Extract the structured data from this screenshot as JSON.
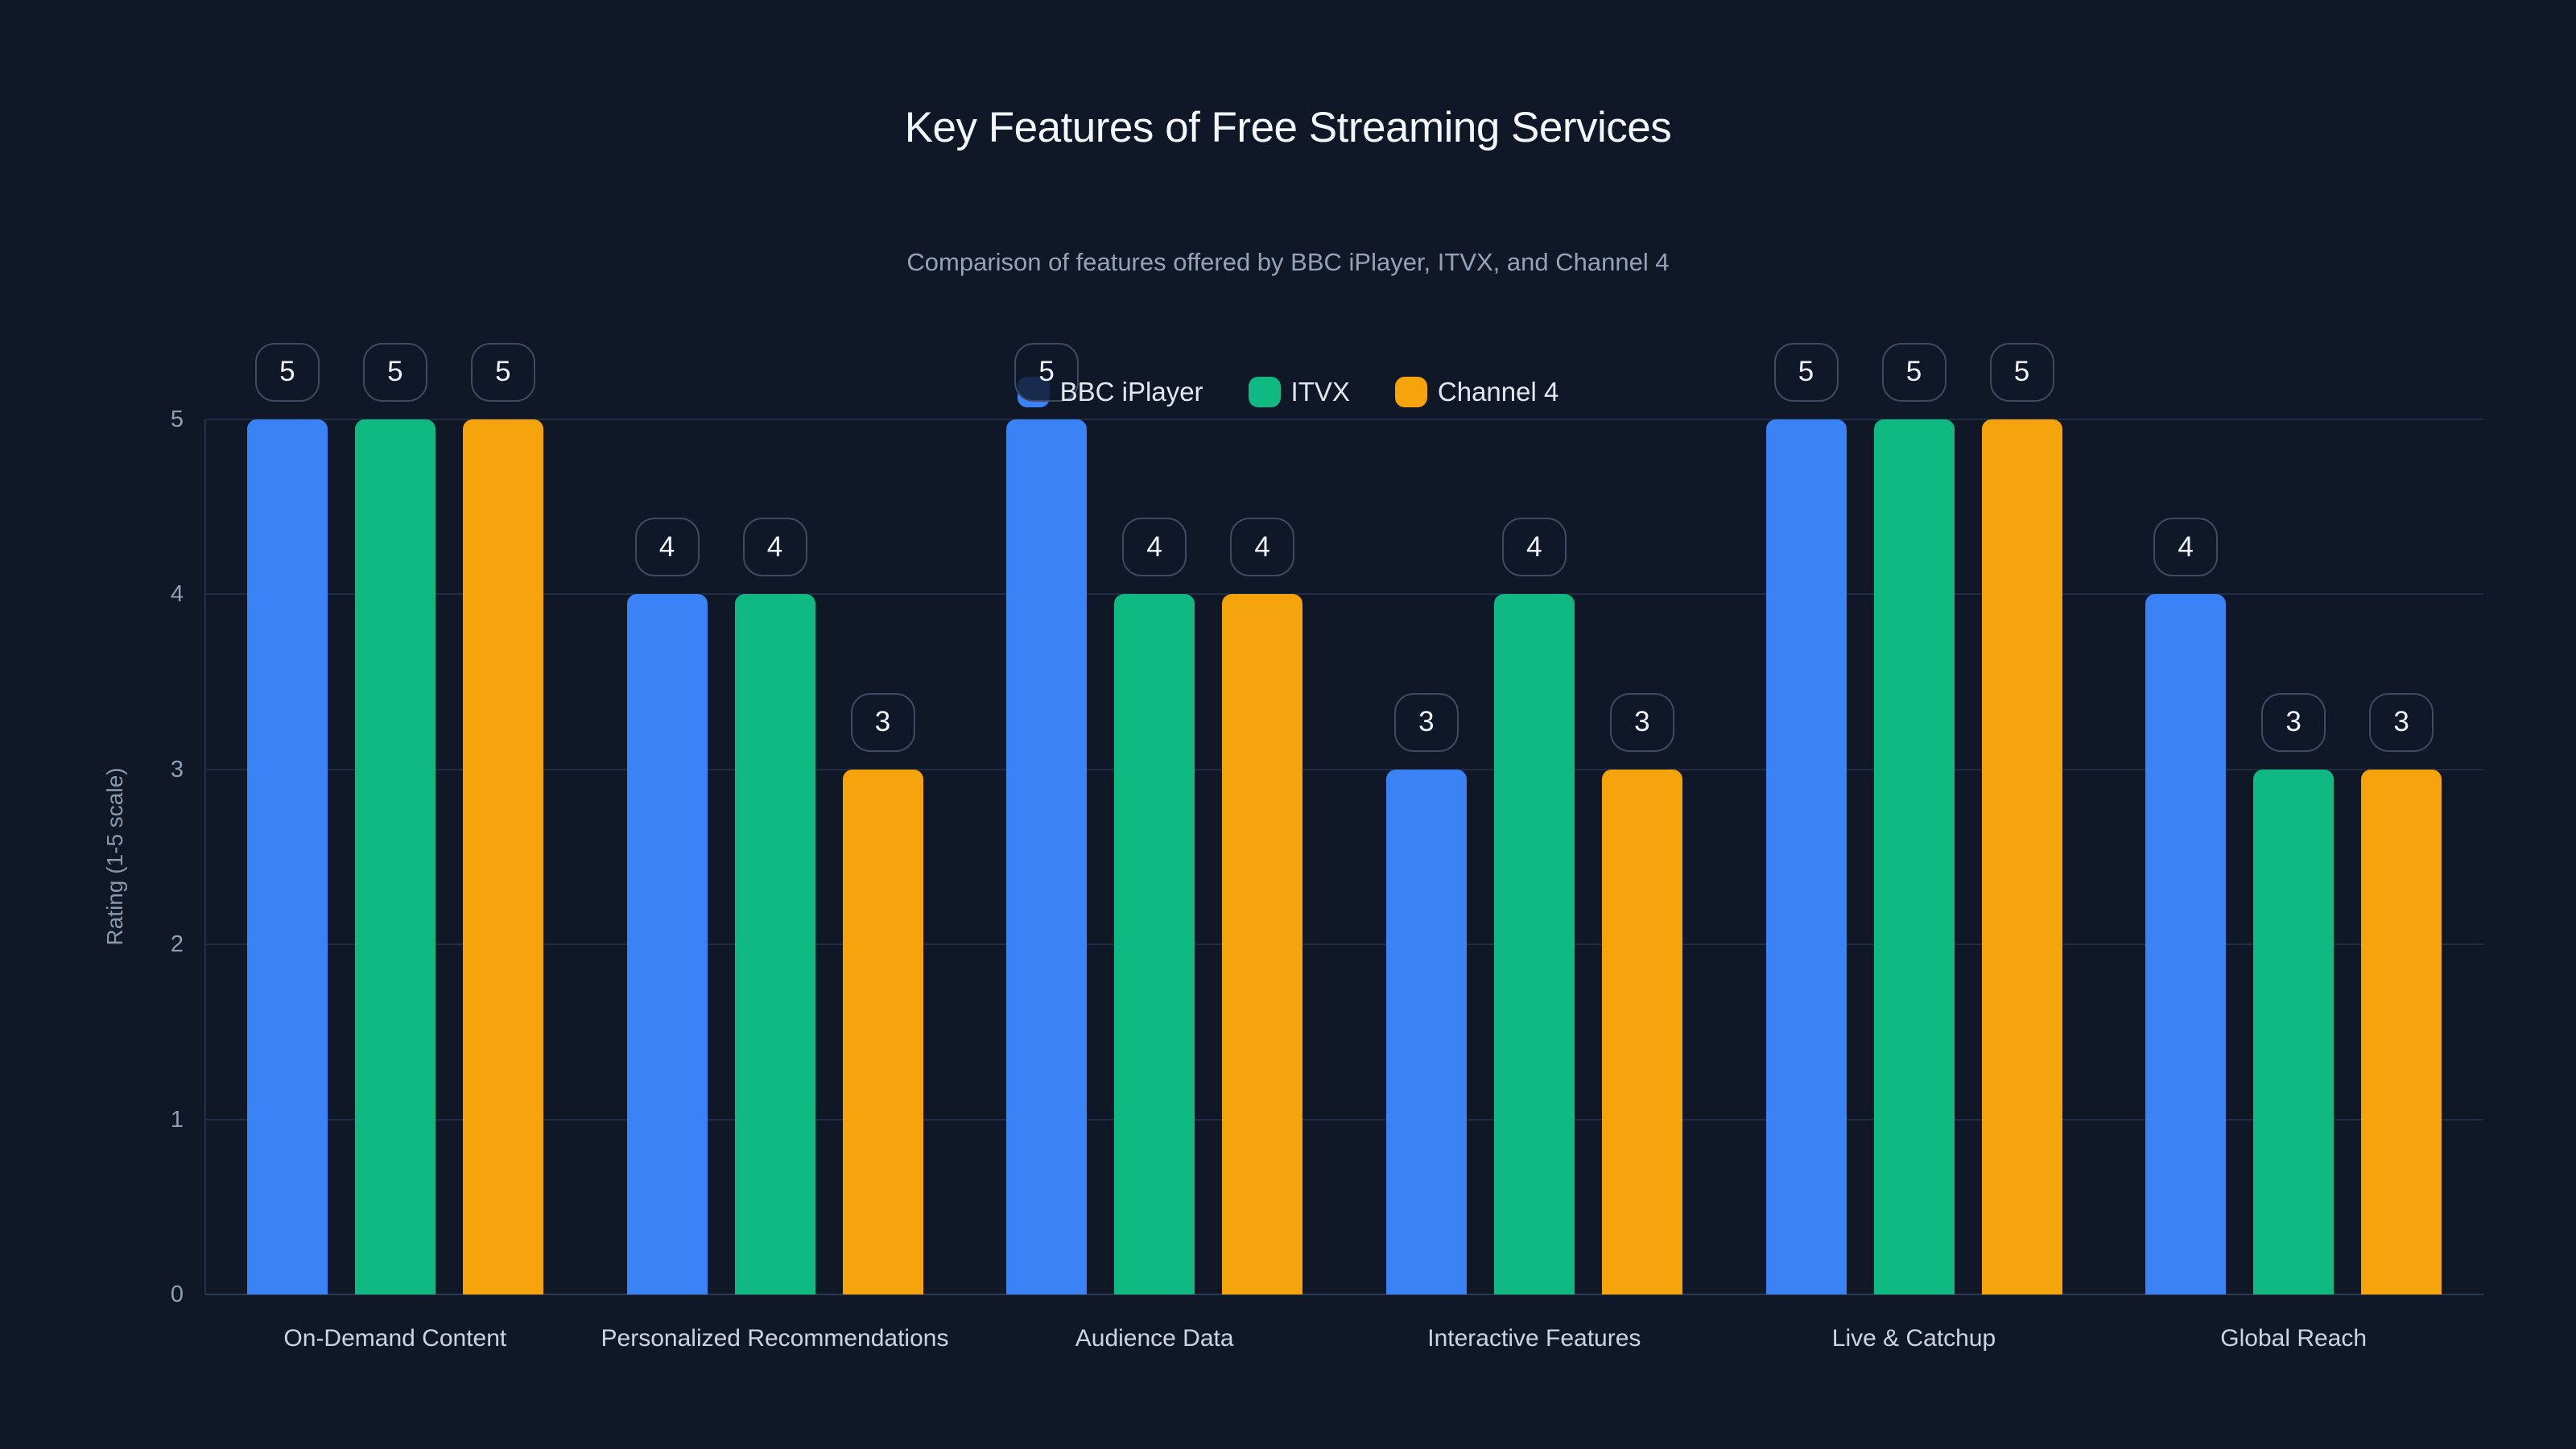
{
  "page": {
    "background": "#101828"
  },
  "chart_data": {
    "type": "bar",
    "title": "Key Features of Free Streaming Services",
    "subtitle": "Comparison of features offered by BBC iPlayer, ITVX, and Channel 4",
    "categories": [
      "On-Demand Content",
      "Personalized Recommendations",
      "Audience Data",
      "Interactive Features",
      "Live & Catchup",
      "Global Reach"
    ],
    "series": [
      {
        "name": "BBC iPlayer",
        "color": "#3b82f6",
        "values": [
          5,
          4,
          5,
          3,
          5,
          4
        ]
      },
      {
        "name": "ITVX",
        "color": "#10b981",
        "values": [
          5,
          4,
          4,
          4,
          5,
          3
        ]
      },
      {
        "name": "Channel 4",
        "color": "#f5a30b",
        "values": [
          5,
          3,
          4,
          3,
          5,
          3
        ]
      }
    ],
    "xlabel": "",
    "ylabel": "Rating (1-5 scale)",
    "ylim": [
      0,
      5
    ],
    "yticks": [
      0,
      1,
      2,
      3,
      4,
      5
    ],
    "grid": true,
    "legend_position": "top-center",
    "value_label_style": "rounded badge above each bar"
  },
  "style": {
    "title_color": "#f4f7fb",
    "subtitle_color": "#94a3b8",
    "legend_text_color": "#e2e8f0",
    "tick_label_color": "#8fa0b5",
    "category_label_color": "#cbd5e1",
    "ylabel_color": "#8b99ad",
    "grid_color": "#212d42",
    "baseline_color": "#2c3a54",
    "axis_line_color": "#243148",
    "badge_border_color": "#3e4a5f",
    "badge_bg_color": "rgba(16,24,40,0.82)",
    "badge_text_color": "#f1f5f9"
  }
}
